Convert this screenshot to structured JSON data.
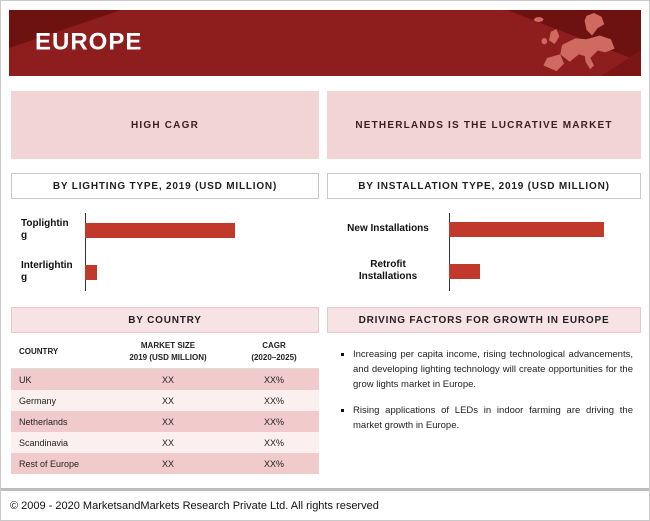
{
  "banner": {
    "title": "EUROPE"
  },
  "left_column": {
    "highlight": "HIGH CAGR",
    "chart_header": "BY LIGHTING TYPE, 2019 (USD MILLION)",
    "country_section_header": "BY COUNTRY",
    "country_table": {
      "headers": {
        "country": "COUNTRY",
        "market_size": "MARKET SIZE\n2019 (USD MILLION)",
        "cagr": "CAGR\n(2020–2025)"
      },
      "rows": [
        {
          "country": "UK",
          "market_size": "XX",
          "cagr": "XX%"
        },
        {
          "country": "Germany",
          "market_size": "XX",
          "cagr": "XX%"
        },
        {
          "country": "Netherlands",
          "market_size": "XX",
          "cagr": "XX%"
        },
        {
          "country": "Scandinavia",
          "market_size": "XX",
          "cagr": "XX%"
        },
        {
          "country": "Rest of Europe",
          "market_size": "XX",
          "cagr": "XX%"
        }
      ]
    }
  },
  "right_column": {
    "highlight": "NETHERLANDS IS THE LUCRATIVE MARKET",
    "chart_header": "BY INSTALLATION TYPE, 2019 (USD MILLION)",
    "driving_header": "DRIVING FACTORS FOR GROWTH IN EUROPE",
    "bullets": [
      "Increasing per capita income, rising technological advancements, and developing lighting technology will create opportunities for the grow lights market in Europe.",
      "Rising applications of LEDs in indoor farming are driving the market growth in Europe."
    ]
  },
  "chart_data": [
    {
      "type": "bar",
      "orientation": "horizontal",
      "title": "BY LIGHTING TYPE, 2019 (USD MILLION)",
      "categories": [
        "Toplighting",
        "Interlighting"
      ],
      "values": [
        100,
        8
      ],
      "value_note": "No numeric labels shown in source; values are relative bar lengths (Toplighting = 100)",
      "bar_color": "#c0392b",
      "legend": "none",
      "grid": "off"
    },
    {
      "type": "bar",
      "orientation": "horizontal",
      "title": "BY INSTALLATION TYPE, 2019 (USD MILLION)",
      "categories": [
        "New Installations",
        "Retrofit Installations"
      ],
      "values": [
        100,
        20
      ],
      "value_note": "No numeric labels shown in source; values are relative bar lengths (New Installations = 100)",
      "bar_color": "#c0392b",
      "legend": "none",
      "grid": "off"
    }
  ],
  "footer": {
    "copyright": "© 2009 - 2020 MarketsandMarkets Research Private Ltd. All rights reserved"
  },
  "colors": {
    "banner_red": "#8e1d1d",
    "banner_dark_accent": "#6e1111",
    "map_fill": "#cf6a60",
    "bar_red": "#c0392b",
    "highlight_pink": "#f3d4d4",
    "table_row_pink": "#f1cbcb"
  }
}
